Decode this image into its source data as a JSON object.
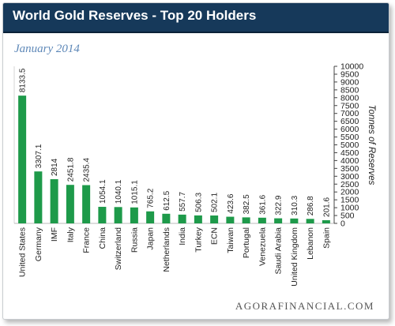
{
  "header": {
    "title": "World Gold Reserves - Top 20 Holders"
  },
  "subtitle": "January 2014",
  "footer": "AGORAFINANCIAL.COM",
  "colors": {
    "header_bg": "#16395a",
    "bar": "#1e9a4a",
    "subtitle": "#5e88b8"
  },
  "chart_data": {
    "type": "bar",
    "title": "World Gold Reserves - Top 20 Holders",
    "subtitle": "January 2014",
    "ylabel": "Tonnes of Reserves",
    "ylim": [
      0,
      10000
    ],
    "ytick_step": 500,
    "y_axis_side": "right",
    "grid": false,
    "legend": "none",
    "categories": [
      "United States",
      "Germany",
      "IMF",
      "Italy",
      "France",
      "China",
      "Switzerland",
      "Russia",
      "Japan",
      "Netherlands",
      "India",
      "Turkey",
      "ECN",
      "Taiwan",
      "Portugal",
      "Venezuela",
      "Saudi Arabia",
      "United Kingdom",
      "Lebanon",
      "Spain"
    ],
    "values": [
      8133.5,
      3307.1,
      2814,
      2451.8,
      2435.4,
      1054.1,
      1040.1,
      1015.1,
      765.2,
      612.5,
      557.7,
      506.3,
      502.1,
      423.6,
      382.5,
      361.6,
      322.9,
      310.3,
      286.8,
      201.6
    ],
    "value_labels": [
      "8133.5",
      "3307.1",
      "2814",
      "2451.8",
      "2435.4",
      "1054.1",
      "1040.1",
      "1015.1",
      "765.2",
      "612.5",
      "557.7",
      "506.3",
      "502.1",
      "423.6",
      "382.5",
      "361.6",
      "322.9",
      "310.3",
      "286.8",
      "201.6"
    ]
  }
}
